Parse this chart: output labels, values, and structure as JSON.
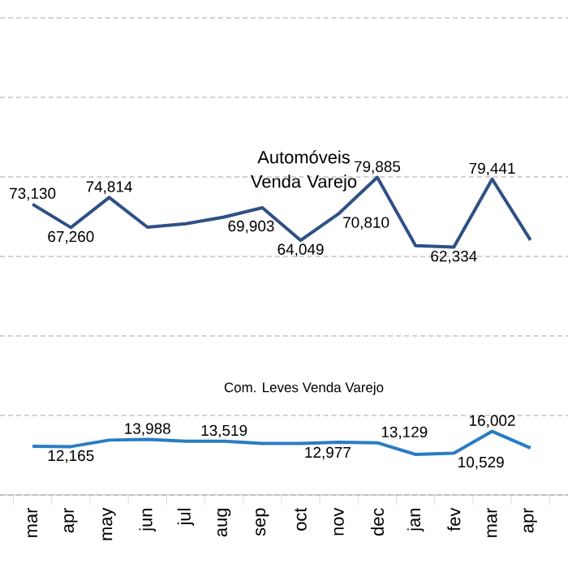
{
  "chart_data": {
    "type": "line",
    "categories": [
      "mar",
      "apr",
      "may",
      "jun",
      "jul",
      "aug",
      "sep",
      "oct",
      "nov",
      "dec",
      "jan",
      "fev",
      "mar",
      "apr"
    ],
    "series": [
      {
        "color": "#2f5085",
        "values": [
          73130,
          67260,
          74814,
          67350,
          68200,
          69903,
          72250,
          64049,
          70810,
          79885,
          62700,
          62334,
          79441,
          64100
        ],
        "value_labels": [
          "73,130",
          "67,260",
          "74,814",
          null,
          null,
          "69,903",
          null,
          "64,049",
          "70,810",
          "79,885",
          null,
          "62,334",
          "79,441",
          null
        ]
      },
      {
        "color": "#2a7cc4",
        "values": [
          12250,
          12165,
          13800,
          13988,
          13500,
          13519,
          12950,
          12977,
          13250,
          13129,
          10200,
          10529,
          16002,
          11800
        ],
        "value_labels": [
          null,
          "12,165",
          null,
          "13,988",
          null,
          "13,519",
          null,
          "12,977",
          null,
          "13,129",
          null,
          "10,529",
          "16,002",
          null
        ]
      }
    ],
    "yticks": [
      {
        "value": 0,
        "label": null
      },
      {
        "value": 20000,
        "label": null
      },
      {
        "value": 40000,
        "label": null
      },
      {
        "value": 60000,
        "label": null
      },
      {
        "value": 80000,
        "label": null
      },
      {
        "value": 100000,
        "label": null
      },
      {
        "value": 120000,
        "label": null
      }
    ],
    "grid": "y",
    "marker": "none",
    "line_style": "solid",
    "annotations": [
      "Automóveis Venda Varejo",
      "Com. Leves Venda Varejo"
    ]
  }
}
